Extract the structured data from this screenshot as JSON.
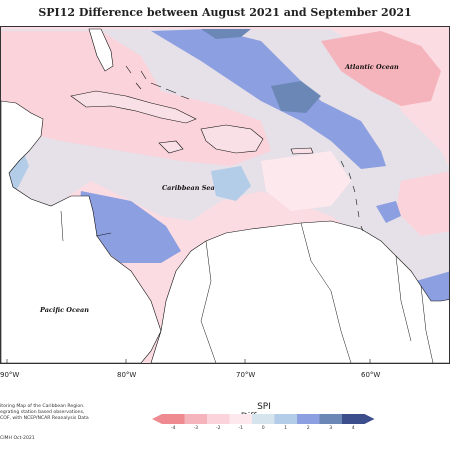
{
  "title": "SPI12 Difference between August 2021 and September 2021",
  "labels": {
    "atlantic": "Atlantic Ocean",
    "caribbean": "Caribbean Sea",
    "pacific": "Pacific Ocean"
  },
  "longitude_labels": [
    "90°W",
    "80°W",
    "70°W",
    "60°W"
  ],
  "credits": [
    "itoring Map of the Caribbean Region.",
    "egrating station based observations,",
    "COF, with NCEP/NCAR Reanalysis Data"
  ],
  "source": "CIMH Oct-2021",
  "legend": {
    "title": "SPI Difference",
    "ticks": [
      "-4",
      "-3",
      "-2",
      "-1",
      "0",
      "1",
      "2",
      "3",
      "4"
    ],
    "colors": [
      "#ee8a90",
      "#f5b3bb",
      "#fbd3da",
      "#fde9ed",
      "#d6e4ee",
      "#b3cce8",
      "#8c9fe0",
      "#6a87b5",
      "#3c4f8c"
    ]
  }
}
